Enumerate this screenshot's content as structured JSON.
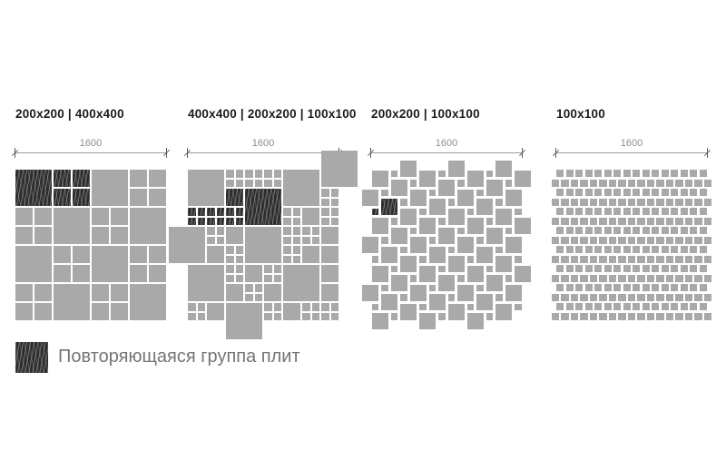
{
  "colors": {
    "tile_gray": "#a9a9a9",
    "tile_dark": "#2d2d2d",
    "dim_line": "#9a9a9a",
    "dim_tick": "#5a5a5a",
    "dim_text": "#8c8c8c",
    "header_text": "#1b1b1b",
    "legend_text": "#757575"
  },
  "legend": {
    "label": "Повторяющаяся группа плит"
  },
  "panels": [
    {
      "title": "200x200 | 400x400",
      "dim_label": "1600",
      "pattern": {
        "type": "cells",
        "units": 16,
        "gap": 2,
        "cells": [
          [
            0,
            0,
            4,
            4,
            1
          ],
          [
            4,
            0,
            4,
            2,
            1
          ],
          [
            8,
            0,
            4,
            4,
            0
          ],
          [
            12,
            0,
            4,
            2,
            0
          ],
          [
            0,
            4,
            4,
            2,
            0
          ],
          [
            4,
            4,
            4,
            4,
            0
          ],
          [
            8,
            4,
            4,
            2,
            0
          ],
          [
            12,
            4,
            4,
            4,
            0
          ],
          [
            0,
            8,
            4,
            4,
            0
          ],
          [
            4,
            8,
            4,
            2,
            0
          ],
          [
            8,
            8,
            4,
            4,
            0
          ],
          [
            12,
            8,
            4,
            2,
            0
          ],
          [
            0,
            12,
            4,
            2,
            0
          ],
          [
            4,
            12,
            4,
            4,
            0
          ],
          [
            8,
            12,
            4,
            2,
            0
          ],
          [
            12,
            12,
            4,
            4,
            0
          ]
        ]
      }
    },
    {
      "title": "400x400 | 200x200 | 100x100",
      "dim_label": "1600",
      "pattern": {
        "type": "cells",
        "units": 16,
        "gap": 2,
        "cells": [
          [
            0,
            0,
            4,
            4,
            0
          ],
          [
            4,
            0,
            2,
            1,
            0
          ],
          [
            6,
            0,
            2,
            1,
            0
          ],
          [
            8,
            0,
            2,
            1,
            0
          ],
          [
            10,
            0,
            4,
            4,
            0
          ],
          [
            14,
            -2,
            4,
            4,
            0
          ],
          [
            4,
            2,
            2,
            2,
            1
          ],
          [
            6,
            2,
            4,
            4,
            1
          ],
          [
            14,
            2,
            2,
            1,
            0
          ],
          [
            0,
            4,
            2,
            1,
            1
          ],
          [
            2,
            4,
            2,
            1,
            1
          ],
          [
            4,
            4,
            2,
            1,
            1
          ],
          [
            10,
            4,
            2,
            1,
            0
          ],
          [
            12,
            4,
            2,
            2,
            0
          ],
          [
            14,
            4,
            2,
            1,
            0
          ],
          [
            -2,
            6,
            4,
            4,
            0
          ],
          [
            2,
            6,
            2,
            1,
            0
          ],
          [
            4,
            6,
            2,
            2,
            0
          ],
          [
            6,
            6,
            4,
            4,
            0
          ],
          [
            10,
            6,
            2,
            1,
            0
          ],
          [
            12,
            6,
            2,
            1,
            0
          ],
          [
            14,
            6,
            2,
            2,
            0
          ],
          [
            2,
            8,
            2,
            2,
            0
          ],
          [
            4,
            8,
            2,
            1,
            0
          ],
          [
            10,
            8,
            2,
            1,
            0
          ],
          [
            12,
            8,
            2,
            2,
            0
          ],
          [
            14,
            8,
            2,
            2,
            0
          ],
          [
            0,
            10,
            4,
            4,
            0
          ],
          [
            4,
            10,
            2,
            1,
            0
          ],
          [
            6,
            10,
            2,
            2,
            0
          ],
          [
            8,
            10,
            2,
            1,
            0
          ],
          [
            10,
            10,
            4,
            4,
            0
          ],
          [
            14,
            10,
            2,
            2,
            0
          ],
          [
            4,
            12,
            2,
            2,
            0
          ],
          [
            6,
            12,
            2,
            1,
            0
          ],
          [
            8,
            12,
            2,
            2,
            0
          ],
          [
            14,
            12,
            2,
            2,
            0
          ],
          [
            0,
            14,
            2,
            1,
            0
          ],
          [
            2,
            14,
            2,
            2,
            0
          ],
          [
            4,
            14,
            4,
            4,
            0
          ],
          [
            8,
            14,
            2,
            1,
            0
          ],
          [
            10,
            14,
            2,
            2,
            0
          ],
          [
            12,
            14,
            2,
            1,
            0
          ],
          [
            14,
            14,
            2,
            1,
            0
          ]
        ]
      }
    },
    {
      "title": "200x200 | 100x100",
      "dim_label": "1600",
      "pattern": {
        "type": "hopscotch",
        "units": 16,
        "gap": 3,
        "large": 2,
        "small": 1,
        "dark_large": [
          1,
          3
        ],
        "dark_small": [
          0,
          4
        ]
      }
    },
    {
      "title": "100x100",
      "dim_label": "1600",
      "pattern": {
        "type": "running-bond",
        "units": 16,
        "gap": 2.2,
        "rows": 16,
        "cols": 16
      }
    }
  ]
}
